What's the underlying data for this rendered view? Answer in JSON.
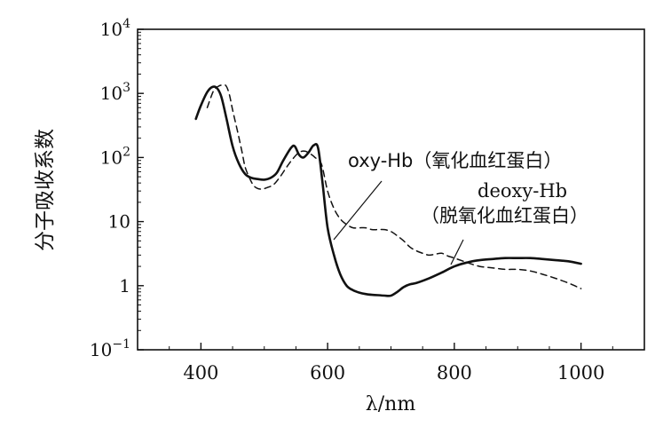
{
  "chart_data": {
    "type": "line",
    "xlabel": "λ/nm",
    "ylabel": "分子吸收系数",
    "xlim": [
      300,
      1100
    ],
    "ylim_log10": [
      -1,
      4
    ],
    "y_scale": "log",
    "x_ticks": [
      "400",
      "600",
      "800",
      "1000"
    ],
    "x_tick_values": [
      400,
      600,
      800,
      1000
    ],
    "y_tick_values": [
      0.1,
      1,
      10,
      100,
      1000,
      10000
    ],
    "y_ticks": [
      {
        "base": "10",
        "exp": "−1"
      },
      {
        "base": "1",
        "exp": ""
      },
      {
        "base": "10",
        "exp": ""
      },
      {
        "base": "10",
        "exp": "2"
      },
      {
        "base": "10",
        "exp": "3"
      },
      {
        "base": "10",
        "exp": "4"
      }
    ],
    "series": [
      {
        "name": "oxy-Hb（氧化血红蛋白）",
        "style": "solid",
        "x": [
          392,
          400,
          410,
          418,
          425,
          432,
          440,
          450,
          460,
          470,
          480,
          490,
          500,
          510,
          520,
          530,
          542,
          548,
          555,
          562,
          570,
          578,
          585,
          592,
          600,
          610,
          620,
          630,
          640,
          650,
          660,
          670,
          680,
          690,
          700,
          710,
          720,
          730,
          740,
          760,
          780,
          800,
          820,
          840,
          860,
          880,
          900,
          920,
          940,
          960,
          980,
          1000
        ],
        "y": [
          400,
          650,
          1050,
          1260,
          1220,
          900,
          420,
          150,
          80,
          55,
          48,
          46,
          45,
          48,
          58,
          90,
          140,
          150,
          110,
          100,
          120,
          155,
          140,
          40,
          8,
          3,
          1.5,
          1.0,
          0.85,
          0.78,
          0.74,
          0.72,
          0.71,
          0.7,
          0.7,
          0.8,
          0.95,
          1.05,
          1.1,
          1.3,
          1.6,
          2.0,
          2.3,
          2.5,
          2.6,
          2.7,
          2.7,
          2.7,
          2.6,
          2.5,
          2.4,
          2.2
        ]
      },
      {
        "name": "deoxy-Hb（脱氧化血红蛋白）",
        "style": "dashed",
        "x": [
          410,
          420,
          428,
          435,
          440,
          445,
          450,
          458,
          465,
          470,
          478,
          485,
          495,
          505,
          515,
          525,
          535,
          545,
          555,
          565,
          575,
          580,
          590,
          600,
          610,
          620,
          630,
          640,
          650,
          660,
          670,
          680,
          690,
          700,
          710,
          720,
          730,
          740,
          750,
          760,
          770,
          780,
          790,
          800,
          820,
          840,
          860,
          880,
          900,
          920,
          940,
          960,
          980,
          1000
        ],
        "y": [
          600,
          1100,
          1300,
          1350,
          1300,
          950,
          550,
          250,
          120,
          70,
          45,
          35,
          32,
          34,
          38,
          50,
          70,
          95,
          120,
          125,
          110,
          100,
          80,
          30,
          16,
          11,
          9,
          8,
          8,
          8,
          7.5,
          7.5,
          7.5,
          7,
          6,
          5,
          4,
          3.5,
          3.2,
          3.0,
          3.1,
          3.2,
          2.9,
          2.7,
          2.3,
          2.0,
          1.9,
          1.8,
          1.8,
          1.7,
          1.5,
          1.3,
          1.1,
          0.9
        ]
      }
    ],
    "annotations": [
      {
        "line1": "oxy-Hb（氧化血红蛋白）",
        "line2": ""
      },
      {
        "line1": "deoxy-Hb",
        "line2": "（脱氧化血红蛋白）"
      }
    ],
    "grid": false,
    "legend": "none"
  }
}
